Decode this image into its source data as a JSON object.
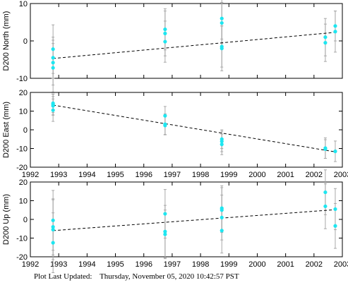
{
  "footer": {
    "label": "Plot Last Updated:",
    "timestamp": "Thursday, November 05, 2020 10:42:57 PST"
  },
  "colors": {
    "point": "#1ee6f0",
    "errorbar": "#a8a8a8",
    "trend": "#000000",
    "frame": "#000000"
  },
  "chart_data": [
    {
      "type": "scatter",
      "ylabel": "D200 North (mm)",
      "xlim": [
        1992,
        2003
      ],
      "ylim": [
        -10,
        10
      ],
      "xticks": [
        1992,
        1993,
        1994,
        1995,
        1996,
        1997,
        1998,
        1999,
        2000,
        2001,
        2002,
        2003
      ],
      "xtick_labels_shown": false,
      "yticks": [
        -10,
        0,
        10
      ],
      "trend": {
        "x": [
          1992.8,
          2002.75
        ],
        "y": [
          -4.7,
          2.3
        ]
      },
      "points": [
        {
          "x": 1992.8,
          "y": -2.2,
          "err": 6.5
        },
        {
          "x": 1992.8,
          "y": -4.5,
          "err": 5.5
        },
        {
          "x": 1992.8,
          "y": -5.8,
          "err": 6.0
        },
        {
          "x": 1992.8,
          "y": -7.2,
          "err": 6.5
        },
        {
          "x": 1996.75,
          "y": 3.1,
          "err": 5.5
        },
        {
          "x": 1996.75,
          "y": 2.0,
          "err": 6.0
        },
        {
          "x": 1996.75,
          "y": -0.2,
          "err": 5.5
        },
        {
          "x": 1998.75,
          "y": 6.0,
          "err": 5.5
        },
        {
          "x": 1998.75,
          "y": 4.8,
          "err": 5.5
        },
        {
          "x": 1998.75,
          "y": -1.5,
          "err": 5.5
        },
        {
          "x": 1998.75,
          "y": -2.0,
          "err": 6.0
        },
        {
          "x": 2002.4,
          "y": 1.0,
          "err": 5.0
        },
        {
          "x": 2002.4,
          "y": -0.5,
          "err": 5.0
        },
        {
          "x": 2002.75,
          "y": 4.0,
          "err": 4.0
        },
        {
          "x": 2002.75,
          "y": 2.5,
          "err": 5.5
        }
      ]
    },
    {
      "type": "scatter",
      "ylabel": "D200 East (mm)",
      "xlim": [
        1992,
        2003
      ],
      "ylim": [
        -20,
        20
      ],
      "xticks": [
        1992,
        1993,
        1994,
        1995,
        1996,
        1997,
        1998,
        1999,
        2000,
        2001,
        2002,
        2003
      ],
      "xtick_labels_shown": true,
      "yticks": [
        -20,
        -10,
        0,
        10,
        20
      ],
      "trend": {
        "x": [
          1992.8,
          2002.75
        ],
        "y": [
          13.2,
          -11.8
        ]
      },
      "points": [
        {
          "x": 1992.8,
          "y": 14.2,
          "err": 5.0
        },
        {
          "x": 1992.8,
          "y": 13.5,
          "err": 5.5
        },
        {
          "x": 1992.8,
          "y": 12.8,
          "err": 5.0
        },
        {
          "x": 1992.8,
          "y": 10.5,
          "err": 6.0
        },
        {
          "x": 1996.75,
          "y": 7.5,
          "err": 5.0
        },
        {
          "x": 1996.75,
          "y": 3.0,
          "err": 5.5
        },
        {
          "x": 1996.75,
          "y": 2.3,
          "err": 5.0
        },
        {
          "x": 1998.75,
          "y": -5.0,
          "err": 5.0
        },
        {
          "x": 1998.75,
          "y": -6.2,
          "err": 5.5
        },
        {
          "x": 1998.75,
          "y": -7.8,
          "err": 5.5
        },
        {
          "x": 2002.4,
          "y": -9.8,
          "err": 5.5
        },
        {
          "x": 2002.4,
          "y": -10.3,
          "err": 5.0
        },
        {
          "x": 2002.75,
          "y": -11.5,
          "err": 5.5
        }
      ]
    },
    {
      "type": "scatter",
      "ylabel": "D200 Up (mm)",
      "xlim": [
        1992,
        2003
      ],
      "ylim": [
        -20,
        20
      ],
      "xticks": [
        1992,
        1993,
        1994,
        1995,
        1996,
        1997,
        1998,
        1999,
        2000,
        2001,
        2002,
        2003
      ],
      "xtick_labels_shown": true,
      "yticks": [
        -20,
        -10,
        0,
        10,
        20
      ],
      "trend": {
        "x": [
          1992.8,
          2002.75
        ],
        "y": [
          -6.0,
          5.2
        ]
      },
      "points": [
        {
          "x": 1992.8,
          "y": -0.5,
          "err": 16.0
        },
        {
          "x": 1992.8,
          "y": -4.0,
          "err": 15.0
        },
        {
          "x": 1992.8,
          "y": -5.5,
          "err": 16.0
        },
        {
          "x": 1992.8,
          "y": -12.5,
          "err": 16.0
        },
        {
          "x": 1996.75,
          "y": 3.0,
          "err": 13.0
        },
        {
          "x": 1996.75,
          "y": -6.5,
          "err": 14.0
        },
        {
          "x": 1996.75,
          "y": -8.0,
          "err": 13.0
        },
        {
          "x": 1998.75,
          "y": 6.0,
          "err": 12.0
        },
        {
          "x": 1998.75,
          "y": 5.0,
          "err": 12.0
        },
        {
          "x": 1998.75,
          "y": 1.0,
          "err": 12.0
        },
        {
          "x": 1998.75,
          "y": -6.0,
          "err": 12.0
        },
        {
          "x": 2002.4,
          "y": 14.5,
          "err": 12.0
        },
        {
          "x": 2002.4,
          "y": 7.0,
          "err": 12.0
        },
        {
          "x": 2002.75,
          "y": 5.5,
          "err": 11.0
        },
        {
          "x": 2002.75,
          "y": -3.5,
          "err": 12.0
        }
      ]
    }
  ]
}
